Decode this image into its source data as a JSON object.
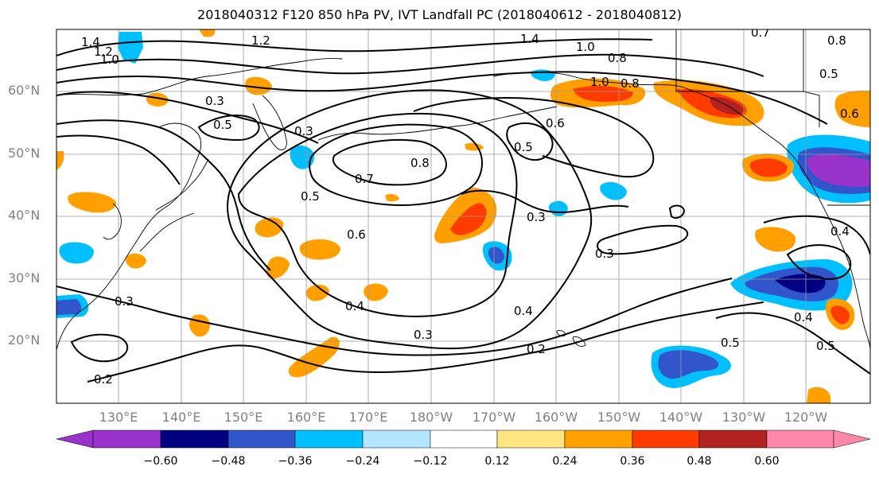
{
  "title": "2018040312 F120 850 hPa PV, IVT Landfall PC (2018040612 - 2018040812)",
  "lat_labels": [
    "60°N",
    "50°N",
    "40°N",
    "30°N",
    "20°N"
  ],
  "lon_labels": [
    "130°E",
    "140°E",
    "150°E",
    "160°E",
    "170°E",
    "180°W",
    "170°W",
    "160°W",
    "150°W",
    "140°W",
    "130°W",
    "120°W"
  ],
  "contour_labels": [
    "1.4",
    "1.2",
    "1.0",
    "1.2",
    "1.4",
    "1.0",
    "0.8",
    "0.7",
    "0.8",
    "1.0",
    "0.8",
    "0.5",
    "0.3",
    "0.5",
    "0.3",
    "0.6",
    "0.5",
    "0.6",
    "0.7",
    "0.8",
    "0.5",
    "0.6",
    "0.3",
    "0.3",
    "0.3",
    "0.4",
    "0.4",
    "0.3",
    "0.2",
    "0.2",
    "0.5",
    "0.4",
    "0.5",
    "0.4"
  ],
  "colorbar": {
    "ticks": [
      "−0.60",
      "−0.48",
      "−0.36",
      "−0.24",
      "−0.12",
      "0.12",
      "0.24",
      "0.36",
      "0.48",
      "0.60"
    ],
    "colors": [
      "#9933cc",
      "#000080",
      "#3355cc",
      "#00bfff",
      "#b3e5ff",
      "#ffffff",
      "#ffe680",
      "#ff9f00",
      "#ff3c00",
      "#b22222",
      "#ff88aa"
    ]
  },
  "map_extent": {
    "lon_min": 120,
    "lon_max": 250,
    "lat_min": 10,
    "lat_max": 70
  }
}
